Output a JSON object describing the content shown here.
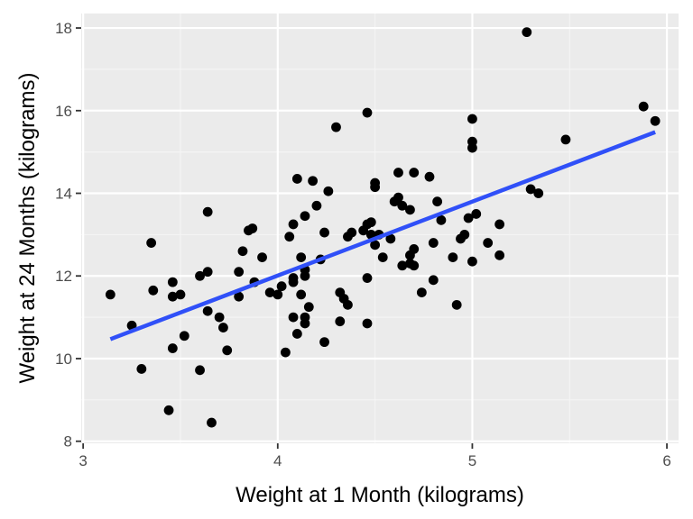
{
  "chart_data": {
    "type": "scatter",
    "title": "",
    "xlabel": "Weight at 1 Month (kilograms)",
    "ylabel": "Weight at 24 Months (kilograms)",
    "xlim": [
      2.99,
      6.06
    ],
    "ylim": [
      7.95,
      18.35
    ],
    "x_ticks": [
      3,
      4,
      5,
      6
    ],
    "y_ticks": [
      8,
      10,
      12,
      14,
      16,
      18
    ],
    "x_tick_labels": [
      "3",
      "4",
      "5",
      "6"
    ],
    "y_tick_labels": [
      "8",
      "10",
      "12",
      "14",
      "16",
      "18"
    ],
    "grid": true,
    "legend": "none",
    "colors": {
      "panel_background": "#ebebeb",
      "grid_major": "#ffffff",
      "grid_minor": "#f5f5f5",
      "points": "#000000",
      "fit_line": "#3050f8",
      "tick_mark": "#333333"
    },
    "series": [
      {
        "name": "observations",
        "kind": "points",
        "points": [
          [
            3.14,
            11.55
          ],
          [
            3.25,
            10.8
          ],
          [
            3.3,
            9.75
          ],
          [
            3.35,
            12.8
          ],
          [
            3.36,
            11.65
          ],
          [
            3.44,
            8.75
          ],
          [
            3.46,
            11.85
          ],
          [
            3.46,
            11.5
          ],
          [
            3.46,
            10.25
          ],
          [
            3.5,
            11.55
          ],
          [
            3.52,
            10.55
          ],
          [
            3.6,
            9.72
          ],
          [
            3.6,
            12.0
          ],
          [
            3.64,
            12.1
          ],
          [
            3.64,
            11.15
          ],
          [
            3.64,
            13.55
          ],
          [
            3.66,
            8.45
          ],
          [
            3.7,
            11.0
          ],
          [
            3.72,
            10.75
          ],
          [
            3.74,
            10.2
          ],
          [
            3.8,
            12.1
          ],
          [
            3.8,
            11.5
          ],
          [
            3.82,
            12.6
          ],
          [
            3.85,
            13.1
          ],
          [
            3.87,
            13.15
          ],
          [
            3.88,
            11.85
          ],
          [
            3.92,
            12.45
          ],
          [
            3.96,
            11.6
          ],
          [
            4.0,
            11.55
          ],
          [
            4.02,
            11.75
          ],
          [
            4.04,
            10.15
          ],
          [
            4.06,
            12.95
          ],
          [
            4.08,
            11.85
          ],
          [
            4.08,
            11.95
          ],
          [
            4.08,
            13.25
          ],
          [
            4.08,
            11.0
          ],
          [
            4.1,
            10.6
          ],
          [
            4.1,
            14.35
          ],
          [
            4.12,
            12.45
          ],
          [
            4.12,
            11.55
          ],
          [
            4.14,
            12.15
          ],
          [
            4.14,
            13.45
          ],
          [
            4.14,
            12.0
          ],
          [
            4.14,
            11.0
          ],
          [
            4.14,
            10.85
          ],
          [
            4.16,
            11.25
          ],
          [
            4.18,
            14.3
          ],
          [
            4.2,
            13.7
          ],
          [
            4.22,
            12.4
          ],
          [
            4.24,
            10.4
          ],
          [
            4.24,
            13.05
          ],
          [
            4.26,
            14.05
          ],
          [
            4.3,
            15.6
          ],
          [
            4.32,
            11.6
          ],
          [
            4.32,
            10.9
          ],
          [
            4.34,
            11.45
          ],
          [
            4.36,
            11.3
          ],
          [
            4.36,
            12.95
          ],
          [
            4.38,
            13.05
          ],
          [
            4.44,
            13.1
          ],
          [
            4.46,
            13.25
          ],
          [
            4.46,
            15.95
          ],
          [
            4.46,
            11.95
          ],
          [
            4.46,
            10.85
          ],
          [
            4.48,
            13.3
          ],
          [
            4.48,
            13.0
          ],
          [
            4.5,
            14.25
          ],
          [
            4.5,
            14.15
          ],
          [
            4.5,
            12.75
          ],
          [
            4.52,
            13.0
          ],
          [
            4.54,
            12.45
          ],
          [
            4.58,
            12.9
          ],
          [
            4.6,
            13.8
          ],
          [
            4.62,
            13.9
          ],
          [
            4.62,
            14.5
          ],
          [
            4.64,
            13.7
          ],
          [
            4.64,
            12.25
          ],
          [
            4.68,
            12.3
          ],
          [
            4.68,
            12.5
          ],
          [
            4.68,
            13.6
          ],
          [
            4.7,
            14.5
          ],
          [
            4.7,
            12.25
          ],
          [
            4.7,
            12.65
          ],
          [
            4.74,
            11.6
          ],
          [
            4.78,
            14.4
          ],
          [
            4.8,
            12.8
          ],
          [
            4.8,
            11.9
          ],
          [
            4.82,
            13.8
          ],
          [
            4.84,
            13.35
          ],
          [
            4.9,
            12.45
          ],
          [
            4.92,
            11.3
          ],
          [
            4.94,
            12.9
          ],
          [
            4.96,
            13.0
          ],
          [
            4.98,
            13.4
          ],
          [
            5.0,
            15.8
          ],
          [
            5.0,
            15.25
          ],
          [
            5.0,
            15.1
          ],
          [
            5.0,
            12.35
          ],
          [
            5.02,
            13.5
          ],
          [
            5.08,
            12.8
          ],
          [
            5.14,
            13.25
          ],
          [
            5.14,
            12.5
          ],
          [
            5.28,
            17.9
          ],
          [
            5.3,
            14.1
          ],
          [
            5.34,
            14.0
          ],
          [
            5.48,
            15.3
          ],
          [
            5.88,
            16.1
          ],
          [
            5.94,
            15.75
          ]
        ]
      },
      {
        "name": "linear fit",
        "kind": "line",
        "points": [
          [
            3.14,
            10.47
          ],
          [
            5.94,
            15.48
          ]
        ]
      }
    ]
  }
}
